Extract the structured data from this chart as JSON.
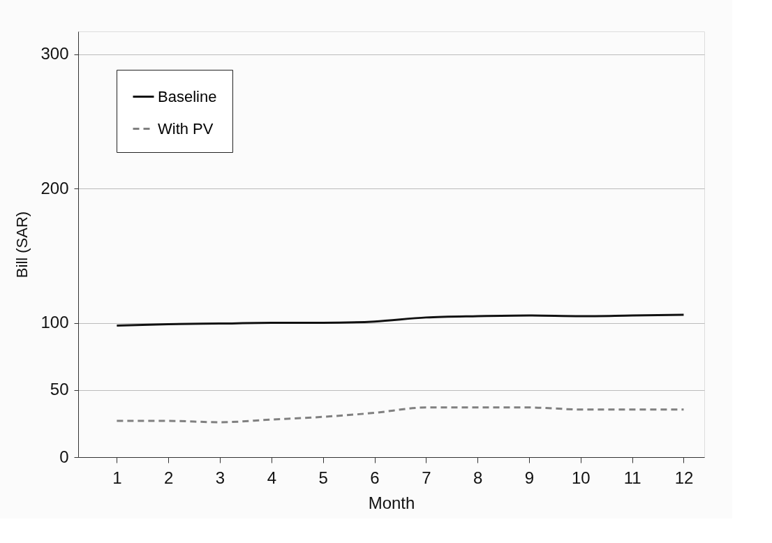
{
  "chart_data": {
    "type": "line",
    "xlabel": "Month",
    "ylabel": "Bill (SAR)",
    "x": [
      1,
      2,
      3,
      4,
      5,
      6,
      7,
      8,
      9,
      10,
      11,
      12
    ],
    "xlim": [
      0.25,
      12.4
    ],
    "xticks": [
      1,
      2,
      3,
      4,
      5,
      6,
      7,
      8,
      9,
      10,
      11,
      12
    ],
    "ylim": [
      0,
      317
    ],
    "yticks": [
      0,
      50,
      100,
      200,
      300
    ],
    "grid": "y",
    "legend": "top left",
    "marker": "none",
    "series": [
      {
        "name": "Baseline",
        "color": "#111111",
        "line_style": "solid",
        "values": [
          98,
          99,
          99.5,
          100,
          100,
          101,
          104,
          105,
          105.5,
          105,
          105.5,
          106
        ]
      },
      {
        "name": "With PV",
        "color": "#808080",
        "line_style": "dashed",
        "values": [
          27,
          27,
          26,
          28,
          30,
          33,
          37,
          37,
          37,
          35.5,
          35.5,
          35.5
        ]
      }
    ]
  }
}
